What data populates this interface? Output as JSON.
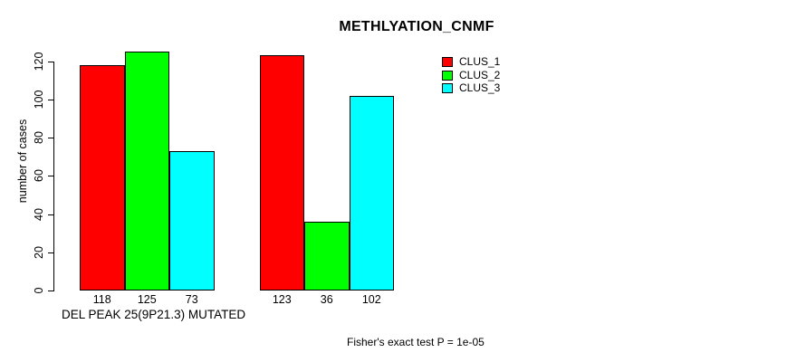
{
  "title": "METHLYATION_CNMF",
  "ylabel": "number of cases",
  "xlabel": "DEL PEAK 25(9P21.3) MUTATED",
  "footnote": "Fisher's exact test P = 1e-05",
  "colors": {
    "clus1": "#FF0000",
    "clus2": "#00FF00",
    "clus3": "#00FFFF",
    "axis": "#000000",
    "background": "#FFFFFF"
  },
  "legend": {
    "position": "top-right",
    "items": [
      {
        "label": "CLUS_1",
        "color": "#FF0000"
      },
      {
        "label": "CLUS_2",
        "color": "#00FF00"
      },
      {
        "label": "CLUS_3",
        "color": "#00FFFF"
      }
    ]
  },
  "chart_data": {
    "type": "bar",
    "grouped": true,
    "title": "METHLYATION_CNMF",
    "xlabel": "DEL PEAK 25(9P21.3) MUTATED",
    "ylabel": "number of cases",
    "categories": [
      "",
      ""
    ],
    "series": [
      {
        "name": "CLUS_1",
        "color": "#FF0000",
        "values": [
          118,
          123
        ]
      },
      {
        "name": "CLUS_2",
        "color": "#00FF00",
        "values": [
          125,
          36
        ]
      },
      {
        "name": "CLUS_3",
        "color": "#00FFFF",
        "values": [
          73,
          102
        ]
      }
    ],
    "bar_value_labels": [
      [
        118,
        125,
        73
      ],
      [
        123,
        36,
        102
      ]
    ],
    "yticks": [
      0,
      20,
      40,
      60,
      80,
      100,
      120
    ],
    "ylim": [
      0,
      125
    ],
    "grid": false,
    "legend_position": "top-right",
    "annotation": "Fisher's exact test P = 1e-05"
  }
}
